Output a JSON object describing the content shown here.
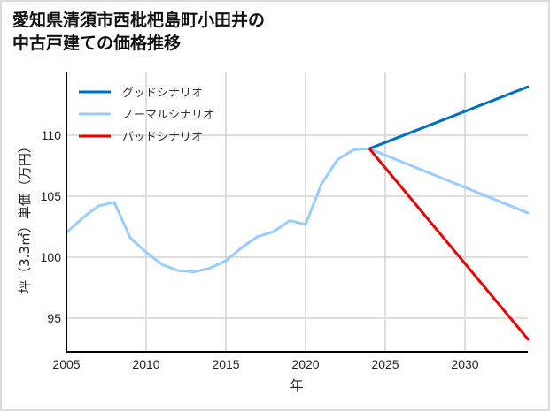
{
  "title_line1": "愛知県清須市西枇杷島町小田井の",
  "title_line2": "中古戸建ての価格推移",
  "chart_data": {
    "type": "line",
    "title": "愛知県清須市西枇杷島町小田井の中古戸建ての価格推移",
    "xlabel": "年",
    "ylabel": "坪（3.3㎡）単価（万円）",
    "xlim": [
      2005,
      2034
    ],
    "ylim": [
      92.5,
      115
    ],
    "x_ticks": [
      2005,
      2010,
      2015,
      2020,
      2025,
      2030
    ],
    "y_ticks": [
      95,
      100,
      105,
      110
    ],
    "grid": true,
    "legend_position": "upper left",
    "series": [
      {
        "name": "グッドシナリオ",
        "color": "#0070c0",
        "x": [
          2024,
          2034
        ],
        "values": [
          108.9,
          114.0
        ]
      },
      {
        "name": "ノーマルシナリオ",
        "color": "#99ccff",
        "x": [
          2005,
          2006,
          2007,
          2008,
          2009,
          2010,
          2011,
          2012,
          2013,
          2014,
          2015,
          2016,
          2017,
          2018,
          2019,
          2020,
          2021,
          2022,
          2023,
          2024,
          2034
        ],
        "values": [
          102.0,
          103.2,
          104.2,
          104.5,
          101.6,
          100.4,
          99.4,
          98.9,
          98.8,
          99.1,
          99.7,
          100.8,
          101.7,
          102.1,
          103.0,
          102.7,
          106.0,
          108.0,
          108.8,
          108.9,
          103.6
        ]
      },
      {
        "name": "バッドシナリオ",
        "color": "#ee0000",
        "x": [
          2024,
          2034
        ],
        "values": [
          108.9,
          93.2
        ]
      }
    ]
  }
}
